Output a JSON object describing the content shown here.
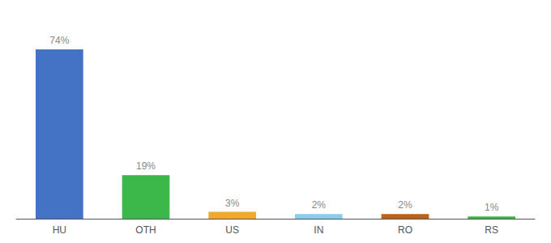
{
  "chart_data": {
    "type": "bar",
    "categories": [
      "HU",
      "OTH",
      "US",
      "IN",
      "RO",
      "RS"
    ],
    "values": [
      74,
      19,
      3,
      2,
      2,
      1
    ],
    "value_labels": [
      "74%",
      "19%",
      "3%",
      "2%",
      "2%",
      "1%"
    ],
    "colors": [
      "#4472c4",
      "#3cb84a",
      "#f0a830",
      "#87ceeb",
      "#b8621a",
      "#3cb84a"
    ],
    "ylim": [
      0,
      85
    ],
    "data_labels": true,
    "tick_labels": "x",
    "grid": false
  }
}
